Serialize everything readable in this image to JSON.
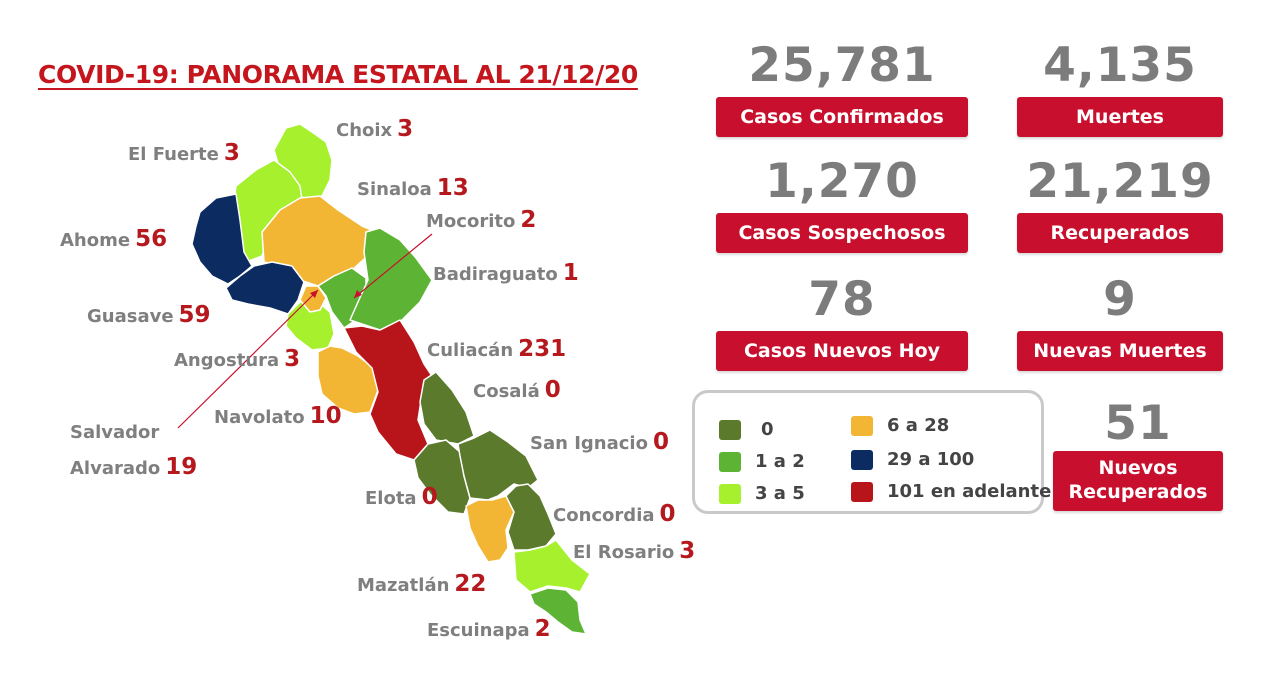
{
  "title": "COVID-19: PANORAMA ESTATAL AL 21/12/20",
  "colors": {
    "c0": "#5b7a2c",
    "c1_2": "#5db434",
    "c3_5": "#a6f02e",
    "c6_28": "#f2b634",
    "c29_100": "#0b2b61",
    "c101": "#b8151b",
    "accent": "#c8102e",
    "number_gray": "#7c7c7c"
  },
  "municipalities": [
    {
      "name": "Choix",
      "count": "3"
    },
    {
      "name": "El Fuerte",
      "count": "3"
    },
    {
      "name": "Sinaloa",
      "count": "13"
    },
    {
      "name": "Mocorito",
      "count": "2"
    },
    {
      "name": "Ahome",
      "count": "56"
    },
    {
      "name": "Badiraguato",
      "count": "1"
    },
    {
      "name": "Guasave",
      "count": "59"
    },
    {
      "name": "Culiacán",
      "count": "231"
    },
    {
      "name": "Angostura",
      "count": "3"
    },
    {
      "name": "Cosalá",
      "count": "0"
    },
    {
      "name": "Navolato",
      "count": "10"
    },
    {
      "name": "San Ignacio",
      "count": "0"
    },
    {
      "name": "Salvador",
      "count": ""
    },
    {
      "name": "Alvarado",
      "count": "19"
    },
    {
      "name": "Elota",
      "count": "0"
    },
    {
      "name": "Concordia",
      "count": "0"
    },
    {
      "name": "El Rosario",
      "count": "3"
    },
    {
      "name": "Mazatlán",
      "count": "22"
    },
    {
      "name": "Escuinapa",
      "count": "2"
    }
  ],
  "stats": {
    "confirmados": {
      "value": "25,781",
      "label": "Casos Confirmados"
    },
    "muertes": {
      "value": "4,135",
      "label": "Muertes"
    },
    "sospechosos": {
      "value": "1,270",
      "label": "Casos Sospechosos"
    },
    "recuperados": {
      "value": "21,219",
      "label": "Recuperados"
    },
    "nuevos_hoy": {
      "value": "78",
      "label": "Casos Nuevos Hoy"
    },
    "nuevas_muertes": {
      "value": "9",
      "label": "Nuevas Muertes"
    },
    "nuevos_recuperados": {
      "value": "51",
      "label_line1": "Nuevos",
      "label_line2": "Recuperados"
    }
  },
  "legend": [
    {
      "label": "0",
      "color": "#5b7a2c"
    },
    {
      "label": "1 a 2",
      "color": "#5db434"
    },
    {
      "label": "3 a 5",
      "color": "#a6f02e"
    },
    {
      "label": "6 a 28",
      "color": "#f2b634"
    },
    {
      "label": "29 a 100",
      "color": "#0b2b61"
    },
    {
      "label": "101 en adelante",
      "color": "#b8151b"
    }
  ]
}
